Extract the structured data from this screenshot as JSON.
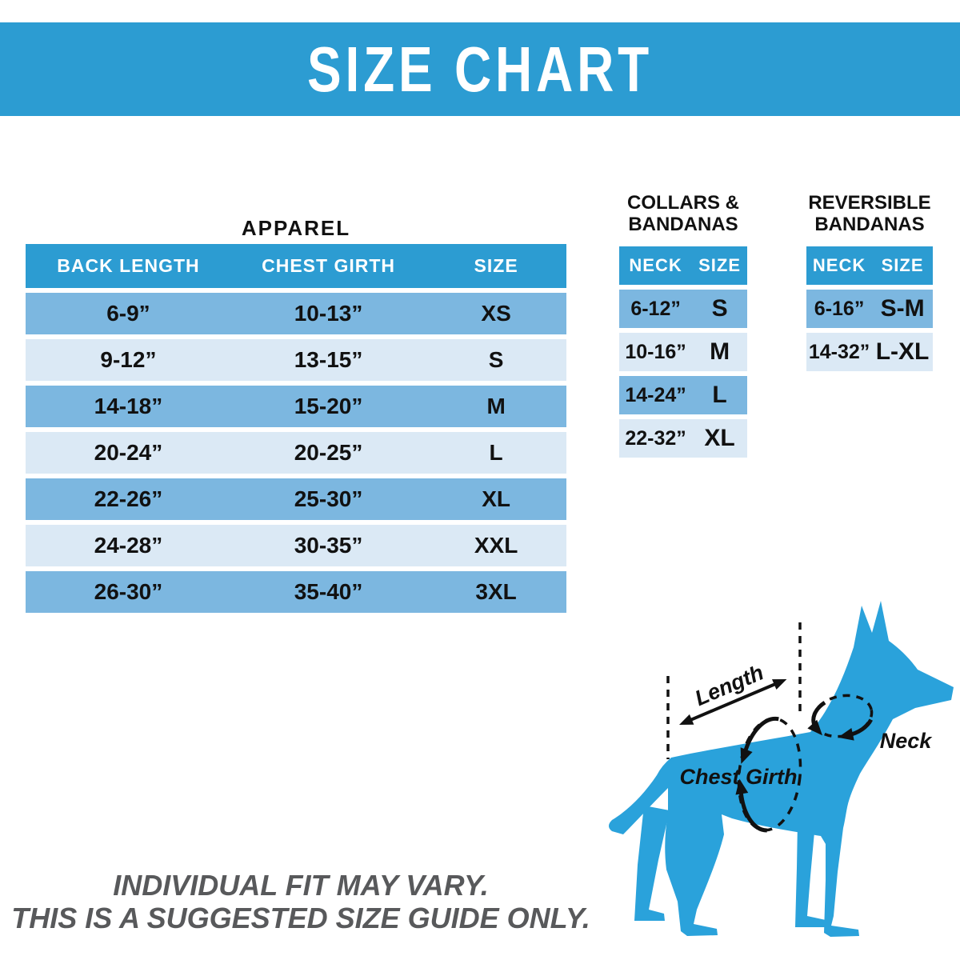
{
  "banner": {
    "title": "SIZE CHART"
  },
  "sections": {
    "apparel": {
      "title_lines": [
        "APPAREL"
      ]
    },
    "collars": {
      "title_lines": [
        "COLLARS &",
        "BANDANAS"
      ]
    },
    "reversible": {
      "title_lines": [
        "REVERSIBLE",
        "BANDANAS"
      ]
    }
  },
  "chart_data": [
    {
      "type": "table",
      "title": "APPAREL",
      "columns": [
        "BACK LENGTH",
        "CHEST GIRTH",
        "SIZE"
      ],
      "rows": [
        [
          "6-9”",
          "10-13”",
          "XS"
        ],
        [
          "9-12”",
          "13-15”",
          "S"
        ],
        [
          "14-18”",
          "15-20”",
          "M"
        ],
        [
          "20-24”",
          "20-25”",
          "L"
        ],
        [
          "22-26”",
          "25-30”",
          "XL"
        ],
        [
          "24-28”",
          "30-35”",
          "XXL"
        ],
        [
          "26-30”",
          "35-40”",
          "3XL"
        ]
      ]
    },
    {
      "type": "table",
      "title": "COLLARS & BANDANAS",
      "columns": [
        "NECK",
        "SIZE"
      ],
      "rows": [
        [
          "6-12”",
          "S"
        ],
        [
          "10-16”",
          "M"
        ],
        [
          "14-24”",
          "L"
        ],
        [
          "22-32”",
          "XL"
        ]
      ]
    },
    {
      "type": "table",
      "title": "REVERSIBLE BANDANAS",
      "columns": [
        "NECK",
        "SIZE"
      ],
      "rows": [
        [
          "6-16”",
          "S-M"
        ],
        [
          "14-32”",
          "L-XL"
        ]
      ]
    }
  ],
  "diagram": {
    "length_label": "Length",
    "neck_label": "Neck",
    "chest_girth_label": "Chest Girth"
  },
  "disclaimer": {
    "line1": "INDIVIDUAL FIT MAY VARY.",
    "line2": "THIS IS A SUGGESTED SIZE GUIDE ONLY."
  },
  "colors": {
    "banner_blue": "#2C9CD2",
    "row_medium_blue": "#7CB7E0",
    "row_light_blue": "#DBE9F5",
    "dog_blue": "#2AA2DB",
    "header_text": "#FFFFFF",
    "body_text": "#111111",
    "disclaimer_gray": "#58595B"
  }
}
